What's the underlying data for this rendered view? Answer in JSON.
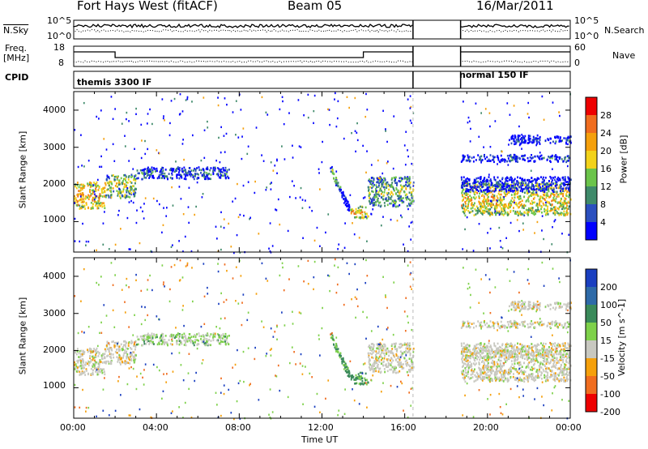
{
  "header": {
    "station": "Fort Hays West (fitACF)",
    "beam": "Beam 05",
    "date": "16/Mar/2011"
  },
  "time_axis": {
    "label": "Time UT",
    "ticks": [
      "00:00",
      "04:00",
      "08:00",
      "12:00",
      "16:00",
      "20:00",
      "00:00"
    ],
    "range_hours": [
      0,
      24
    ],
    "gap_hours": [
      16.4,
      18.7
    ]
  },
  "param_labels": {
    "nsky": "N.Sky",
    "nsearch": "N.Search",
    "freq": "Freq.",
    "freq_unit": "[MHz]",
    "nave": "Nave",
    "cpid": "CPID",
    "nsky_ticks": [
      "10^5",
      "10^0"
    ],
    "nsearch_ticks": [
      "10^5",
      "10^0"
    ],
    "freq_ticks": [
      "18",
      "8"
    ],
    "nave_ticks": [
      "60",
      "0"
    ],
    "cpid_segments": [
      {
        "start": 0,
        "end": 16.4,
        "name": "themis 3300 IF"
      },
      {
        "start": 18.7,
        "end": 24,
        "name": "normal 150 IF"
      }
    ]
  },
  "power_panel": {
    "ylabel": "Slant Range [km]",
    "yticks": [
      "1000",
      "2000",
      "3000",
      "4000"
    ],
    "colorbar_label": "Power [dB]",
    "colorbar_ticks": [
      "4",
      "8",
      "12",
      "16",
      "20",
      "24",
      "28"
    ],
    "colors": [
      "#0000ff",
      "#2b4fbf",
      "#3f8a6a",
      "#6bc44a",
      "#f2d21a",
      "#f5a00c",
      "#f06d1f",
      "#ee0000"
    ]
  },
  "velocity_panel": {
    "ylabel": "Slant Range [km]",
    "yticks": [
      "1000",
      "2000",
      "3000",
      "4000"
    ],
    "colorbar_label": "Velocity [m s^-1]",
    "colorbar_ticks": [
      "200",
      "100",
      "50",
      "15",
      "-15",
      "-50",
      "-100",
      "-200"
    ],
    "colors": [
      "#1a3fc0",
      "#2e6aa8",
      "#3a8a5a",
      "#7ed14a",
      "#c8c8c0",
      "#f5a00c",
      "#f06d1f",
      "#ee0000"
    ]
  },
  "chart_data": {
    "type": "heatmap",
    "title": "Fort Hays West (fitACF)",
    "subtitle": "Beam 05  16/Mar/2011",
    "xlabel": "Time UT",
    "ylabel": "Slant Range [km]",
    "x_range_hours": [
      0,
      24
    ],
    "y_range_km": [
      180,
      4500
    ],
    "data_gap_hours": [
      16.4,
      18.7
    ],
    "scatter_bands": [
      {
        "start_h": 0.0,
        "end_h": 1.5,
        "center_km": 1700,
        "width_km": 450,
        "power_db": 22,
        "velocity": 0
      },
      {
        "start_h": 1.5,
        "end_h": 3.0,
        "center_km": 1950,
        "width_km": 400,
        "power_db": 16,
        "velocity": 0
      },
      {
        "start_h": 3.0,
        "end_h": 7.5,
        "center_km": 2300,
        "width_km": 200,
        "power_db": 8,
        "velocity": 15
      },
      {
        "start_h": 12.4,
        "end_h": 13.3,
        "center_km": 2200,
        "width_km": 300,
        "power_db": 14,
        "velocity": 40
      },
      {
        "start_h": 13.3,
        "end_h": 14.2,
        "center_km": 1250,
        "width_km": 200,
        "power_db": 22,
        "velocity": 40
      },
      {
        "start_h": 14.2,
        "end_h": 16.4,
        "center_km": 1800,
        "width_km": 500,
        "power_db": 14,
        "velocity": 0
      },
      {
        "start_h": 18.7,
        "end_h": 24.0,
        "center_km": 1600,
        "width_km": 550,
        "power_db": 20,
        "velocity": 0
      },
      {
        "start_h": 18.7,
        "end_h": 24.0,
        "center_km": 2000,
        "width_km": 250,
        "power_db": 5,
        "velocity": 0
      },
      {
        "start_h": 18.7,
        "end_h": 24.0,
        "center_km": 2700,
        "width_km": 120,
        "power_db": 6,
        "velocity": 0
      },
      {
        "start_h": 21.0,
        "end_h": 24.0,
        "center_km": 3200,
        "width_km": 150,
        "power_db": 5,
        "velocity": 0
      }
    ]
  }
}
